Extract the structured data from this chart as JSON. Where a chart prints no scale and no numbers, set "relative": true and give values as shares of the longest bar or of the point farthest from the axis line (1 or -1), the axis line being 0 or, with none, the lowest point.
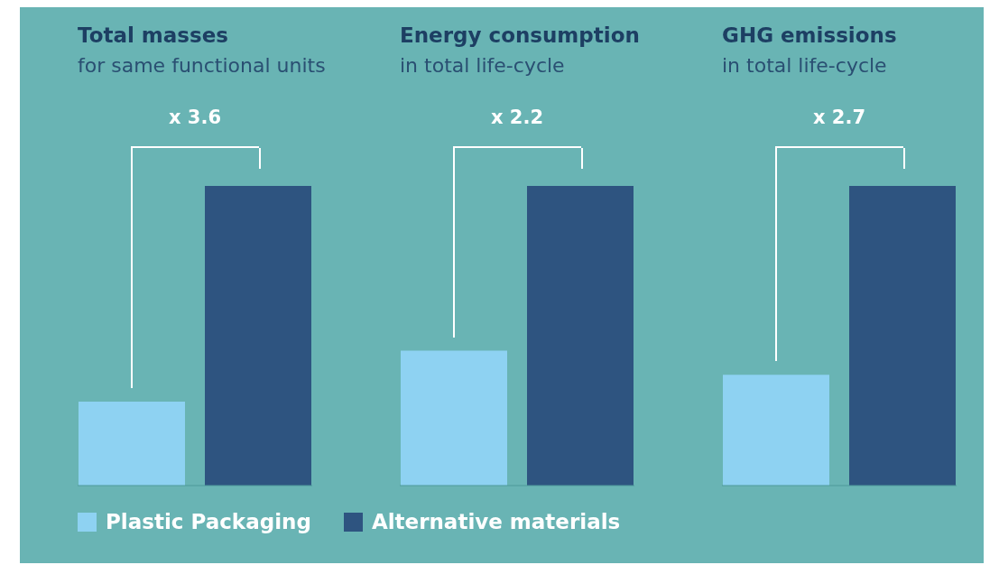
{
  "chart_data": [
    {
      "type": "bar",
      "relative": true,
      "title": "Total masses",
      "subtitle": "for same functional units",
      "annotations": [
        "x 3.6"
      ],
      "categories": [
        null
      ],
      "legend": "bottom",
      "series": [
        {
          "name": "Plastic Packaging",
          "color": "#8ed2f2",
          "values": [
            0.28
          ]
        },
        {
          "name": "Alternative materials",
          "color": "#2e5480",
          "values": [
            1
          ]
        }
      ]
    },
    {
      "type": "bar",
      "relative": true,
      "title": "Energy consumption",
      "subtitle": "in total life-cycle",
      "annotations": [
        "x 2.2"
      ],
      "categories": [
        null
      ],
      "series": [
        {
          "color": "#8ed2f2",
          "values": [
            0.45
          ]
        },
        {
          "color": "#2e5480",
          "values": [
            1
          ]
        }
      ]
    },
    {
      "type": "bar",
      "relative": true,
      "title": "GHG emissions",
      "subtitle": "in total life-cycle",
      "annotations": [
        "x 2.7"
      ],
      "categories": [
        null
      ],
      "series": [
        {
          "color": "#8ed2f2",
          "values": [
            0.37
          ]
        },
        {
          "color": "#2e5480",
          "values": [
            1
          ]
        }
      ]
    }
  ]
}
